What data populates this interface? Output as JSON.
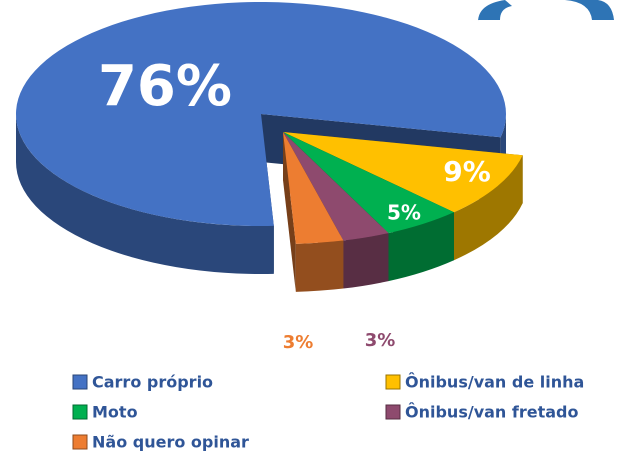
{
  "chart_data": {
    "type": "pie3d",
    "categories": [
      "Carro próprio",
      "Ônibus/van de linha",
      "Moto",
      "Ônibus/van fretado",
      "Não quero opinar"
    ],
    "values": [
      76,
      9,
      5,
      3,
      3
    ],
    "value_labels": [
      "76%",
      "9%",
      "5%",
      "3%",
      "3%"
    ],
    "colors": [
      "#4472c4",
      "#ffc000",
      "#00b050",
      "#8e4a6e",
      "#ed7d31"
    ]
  }
}
